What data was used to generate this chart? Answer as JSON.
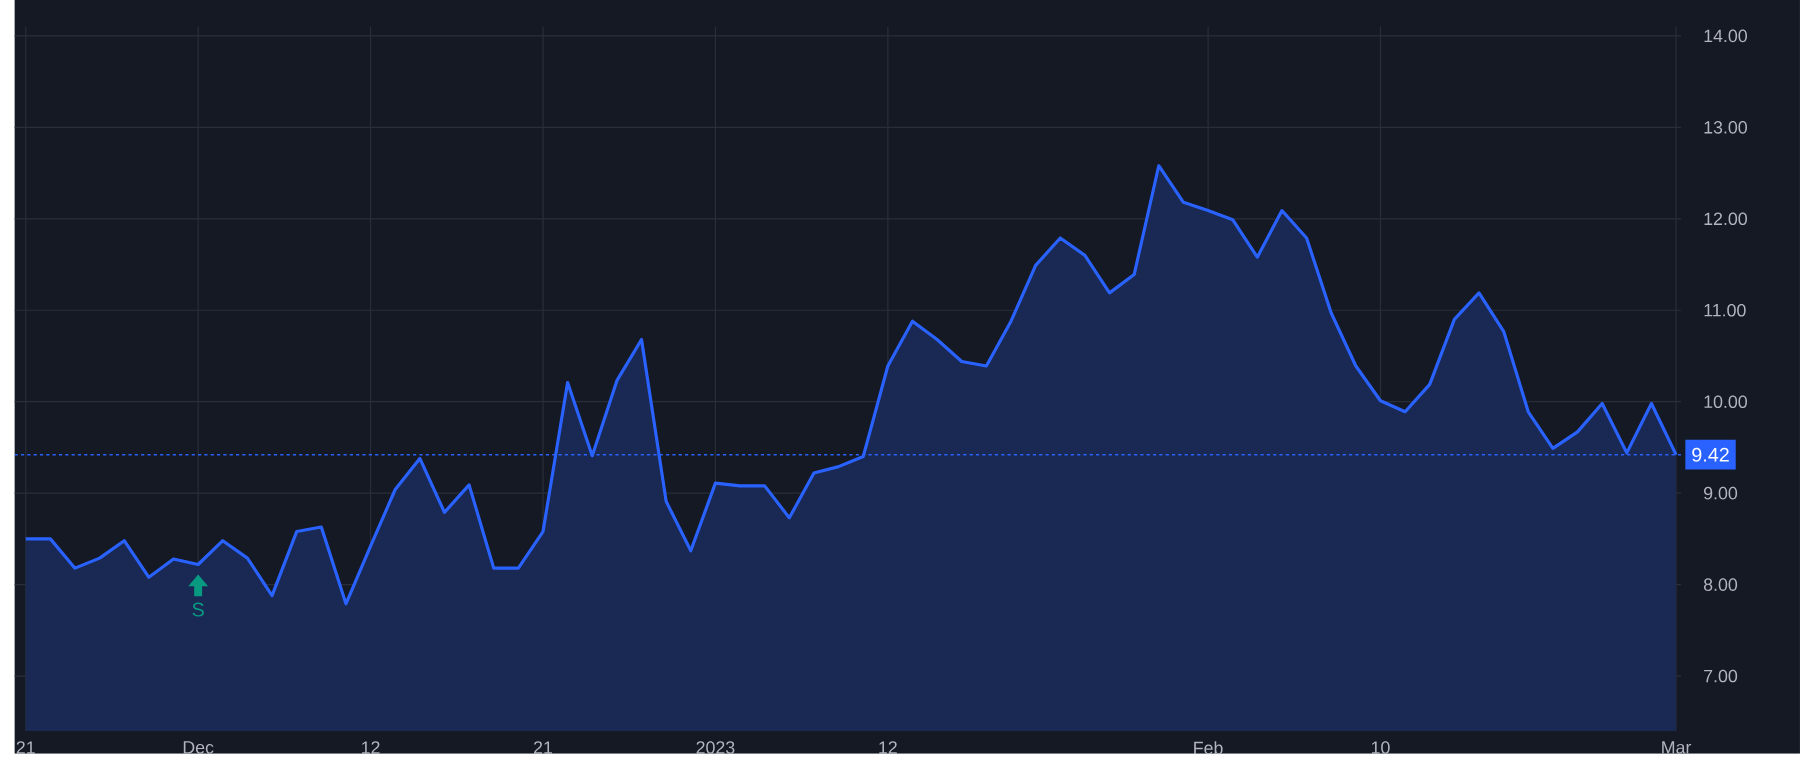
{
  "chart_data": {
    "type": "area",
    "categories": [
      "21",
      null,
      null,
      null,
      null,
      null,
      null,
      "Dec",
      null,
      null,
      null,
      null,
      null,
      null,
      "12",
      null,
      null,
      null,
      null,
      null,
      null,
      "21",
      null,
      null,
      null,
      null,
      null,
      null,
      "2023",
      null,
      null,
      null,
      null,
      null,
      null,
      "12",
      null,
      null,
      null,
      null,
      null,
      null,
      null,
      null,
      null,
      null,
      null,
      null,
      "Feb",
      null,
      null,
      null,
      null,
      null,
      null,
      "10",
      null,
      null,
      null,
      null,
      null,
      null,
      null,
      null,
      null,
      null,
      null,
      "Mar"
    ],
    "series": [
      {
        "color": "#2962ff",
        "values": [
          8.5,
          8.5,
          8.18,
          8.29,
          8.48,
          8.08,
          8.28,
          8.22,
          8.48,
          8.29,
          7.88,
          8.58,
          8.63,
          7.79,
          8.42,
          9.04,
          9.38,
          8.79,
          9.09,
          8.18,
          8.18,
          8.58,
          10.21,
          9.41,
          10.23,
          10.68,
          8.91,
          8.37,
          9.11,
          9.08,
          9.08,
          8.73,
          9.22,
          9.29,
          9.4,
          10.39,
          10.88,
          10.68,
          10.44,
          10.39,
          10.88,
          11.49,
          11.79,
          11.6,
          11.19,
          11.39,
          12.58,
          12.18,
          12.09,
          11.99,
          11.58,
          12.09,
          11.79,
          10.97,
          10.39,
          10.01,
          9.89,
          10.19,
          10.9,
          11.19,
          10.77,
          9.89,
          9.49,
          9.67,
          9.98,
          9.44,
          9.98,
          9.42
        ]
      }
    ],
    "ylim": [
      6.4,
      14.1
    ],
    "yticks": [
      {
        "value": 7,
        "label": "7.00"
      },
      {
        "value": 8,
        "label": "8.00"
      },
      {
        "value": 9,
        "label": "9.00"
      },
      {
        "value": 10,
        "label": "10.00"
      },
      {
        "value": 11,
        "label": "11.00"
      },
      {
        "value": 12,
        "label": "12.00"
      },
      {
        "value": 13,
        "label": "13.00"
      },
      {
        "value": 14,
        "label": "14.00"
      }
    ],
    "grid": true,
    "ref_lines": [
      {
        "axis": "y",
        "value": 9.42,
        "label": "9.42",
        "color": "#2962ff",
        "line_style": "dotted"
      }
    ],
    "annotations": [
      {
        "text": "S",
        "x": "Dec",
        "y": 8.22
      }
    ]
  }
}
